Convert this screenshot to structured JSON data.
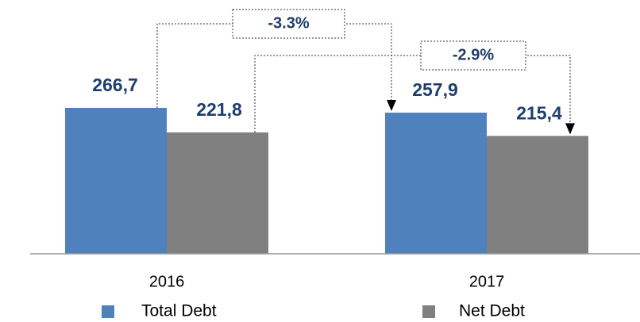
{
  "chart_data": {
    "type": "bar",
    "categories": [
      "2016",
      "2017"
    ],
    "series": [
      {
        "name": "Total Debt",
        "color": "#4f81bd",
        "values": [
          266.7,
          257.9
        ],
        "value_labels": [
          "266,7",
          "257,9"
        ]
      },
      {
        "name": "Net Debt",
        "color": "#808080",
        "values": [
          221.8,
          215.4
        ],
        "value_labels": [
          "221,8",
          "215,4"
        ]
      }
    ],
    "annotations": [
      "-3.3%",
      "-2.9%"
    ],
    "ylim": [
      0,
      300
    ]
  }
}
